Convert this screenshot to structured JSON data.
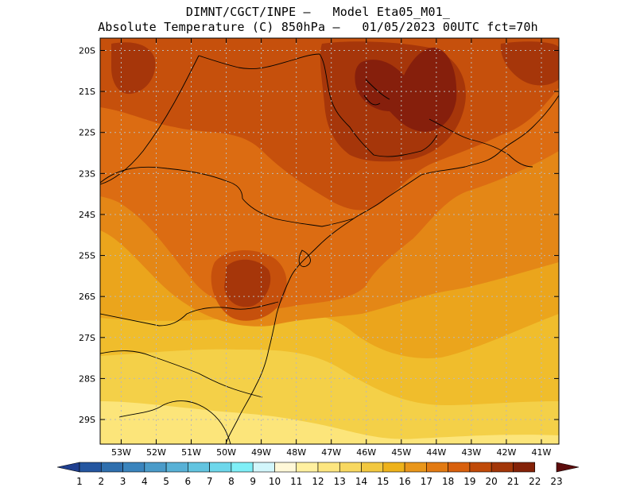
{
  "header": {
    "line1": "DIMNT/CGCT/INPE –   Model Eta05_M01_",
    "line2": "Absolute Temperature (C) 850hPa –   01/05/2023 00UTC fct=70h"
  },
  "map": {
    "lat_labels": [
      "20S",
      "21S",
      "22S",
      "23S",
      "24S",
      "25S",
      "26S",
      "27S",
      "28S",
      "29S"
    ],
    "lon_labels": [
      "53W",
      "52W",
      "51W",
      "50W",
      "49W",
      "48W",
      "47W",
      "46W",
      "45W",
      "44W",
      "43W",
      "42W",
      "41W"
    ],
    "lat_range": [
      -29.6,
      -19.7
    ],
    "lon_range": [
      -53.6,
      -40.5
    ]
  },
  "colorbar": {
    "labels": [
      "1",
      "2",
      "3",
      "4",
      "5",
      "6",
      "7",
      "8",
      "9",
      "10",
      "11",
      "12",
      "13",
      "14",
      "15",
      "16",
      "17",
      "18",
      "19",
      "20",
      "21",
      "22",
      "23"
    ],
    "colors": [
      "#1f3f8f",
      "#2456a0",
      "#2f6fae",
      "#3a84bd",
      "#4a9bc9",
      "#58b1d6",
      "#62c4e0",
      "#6dd7eb",
      "#7feff7",
      "#d2f6fb",
      "#fff8d8",
      "#fff0a0",
      "#fde680",
      "#f8d860",
      "#f2c840",
      "#eeb21a",
      "#e9961a",
      "#e27a12",
      "#d8600d",
      "#c04a08",
      "#a23608",
      "#842208",
      "#5c0c0c"
    ]
  },
  "field_colors": {
    "t14": "#fce57a",
    "t15": "#f4d048",
    "t16": "#f0bd2c",
    "t17": "#eba51c",
    "t18": "#e48716",
    "t19": "#dc6c12",
    "t20": "#c6500c",
    "t21": "#a6360a",
    "t22": "#861f0c"
  }
}
